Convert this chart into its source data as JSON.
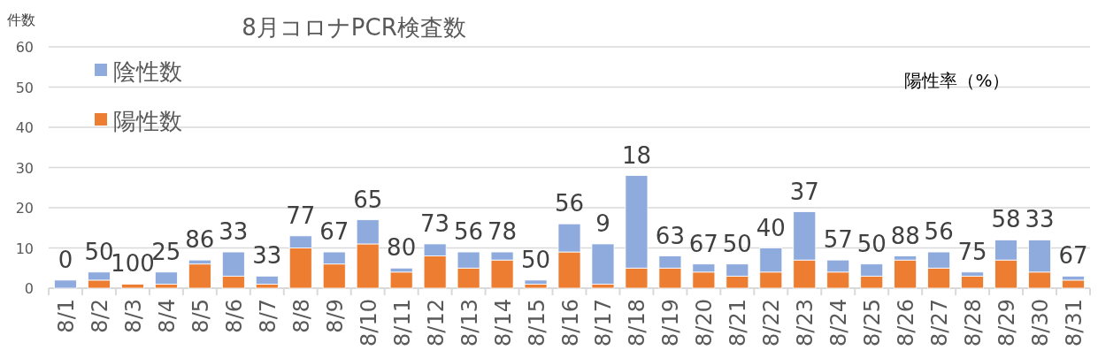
{
  "chart_data": {
    "type": "bar",
    "stacked": true,
    "title": "8月コロナPCR検査数",
    "ylabel": "件数",
    "annotations": [
      "陽性率（%）",
      {
        "text": "0",
        "x": "8/1",
        "y": 2
      },
      {
        "text": "50",
        "x": "8/2",
        "y": 4
      },
      {
        "text": "100",
        "x": "8/3",
        "y": 1
      },
      {
        "text": "25",
        "x": "8/4",
        "y": 4
      },
      {
        "text": "86",
        "x": "8/5",
        "y": 7
      },
      {
        "text": "33",
        "x": "8/6",
        "y": 9
      },
      {
        "text": "33",
        "x": "8/7",
        "y": 3
      },
      {
        "text": "77",
        "x": "8/8",
        "y": 13
      },
      {
        "text": "67",
        "x": "8/9",
        "y": 9
      },
      {
        "text": "65",
        "x": "8/10",
        "y": 17
      },
      {
        "text": "80",
        "x": "8/11",
        "y": 5
      },
      {
        "text": "73",
        "x": "8/12",
        "y": 11
      },
      {
        "text": "56",
        "x": "8/13",
        "y": 9
      },
      {
        "text": "78",
        "x": "8/14",
        "y": 9
      },
      {
        "text": "50",
        "x": "8/15",
        "y": 2
      },
      {
        "text": "56",
        "x": "8/16",
        "y": 16
      },
      {
        "text": "9",
        "x": "8/17",
        "y": 11
      },
      {
        "text": "18",
        "x": "8/18",
        "y": 28
      },
      {
        "text": "63",
        "x": "8/19",
        "y": 8
      },
      {
        "text": "67",
        "x": "8/20",
        "y": 6
      },
      {
        "text": "50",
        "x": "8/21",
        "y": 6
      },
      {
        "text": "40",
        "x": "8/22",
        "y": 10
      },
      {
        "text": "37",
        "x": "8/23",
        "y": 19
      },
      {
        "text": "57",
        "x": "8/24",
        "y": 7
      },
      {
        "text": "50",
        "x": "8/25",
        "y": 6
      },
      {
        "text": "88",
        "x": "8/26",
        "y": 8
      },
      {
        "text": "56",
        "x": "8/27",
        "y": 9
      },
      {
        "text": "75",
        "x": "8/28",
        "y": 4
      },
      {
        "text": "58",
        "x": "8/29",
        "y": 12
      },
      {
        "text": "33",
        "x": "8/30",
        "y": 12
      },
      {
        "text": "67",
        "x": "8/31",
        "y": 3
      }
    ],
    "categories": [
      "8/1",
      "8/2",
      "8/3",
      "8/4",
      "8/5",
      "8/6",
      "8/7",
      "8/8",
      "8/9",
      "8/10",
      "8/11",
      "8/12",
      "8/13",
      "8/14",
      "8/15",
      "8/16",
      "8/17",
      "8/18",
      "8/19",
      "8/20",
      "8/21",
      "8/22",
      "8/23",
      "8/24",
      "8/25",
      "8/26",
      "8/27",
      "8/28",
      "8/29",
      "8/30",
      "8/31"
    ],
    "series": [
      {
        "name": "陽性数",
        "color": "#ed7d31",
        "values": [
          0,
          2,
          1,
          1,
          6,
          3,
          1,
          10,
          6,
          11,
          4,
          8,
          5,
          7,
          1,
          9,
          1,
          5,
          5,
          4,
          3,
          4,
          7,
          4,
          3,
          7,
          5,
          3,
          7,
          4,
          2
        ]
      },
      {
        "name": "陰性数",
        "color": "#8faadc",
        "values": [
          2,
          2,
          0,
          3,
          1,
          6,
          2,
          3,
          3,
          6,
          1,
          3,
          4,
          2,
          1,
          7,
          10,
          23,
          3,
          2,
          3,
          6,
          12,
          3,
          3,
          1,
          4,
          1,
          5,
          8,
          1
        ]
      }
    ],
    "ylim": [
      0,
      60
    ],
    "yticks": [
      0,
      10,
      20,
      30,
      40,
      50,
      60
    ],
    "grid": "y",
    "legend": "top left"
  }
}
